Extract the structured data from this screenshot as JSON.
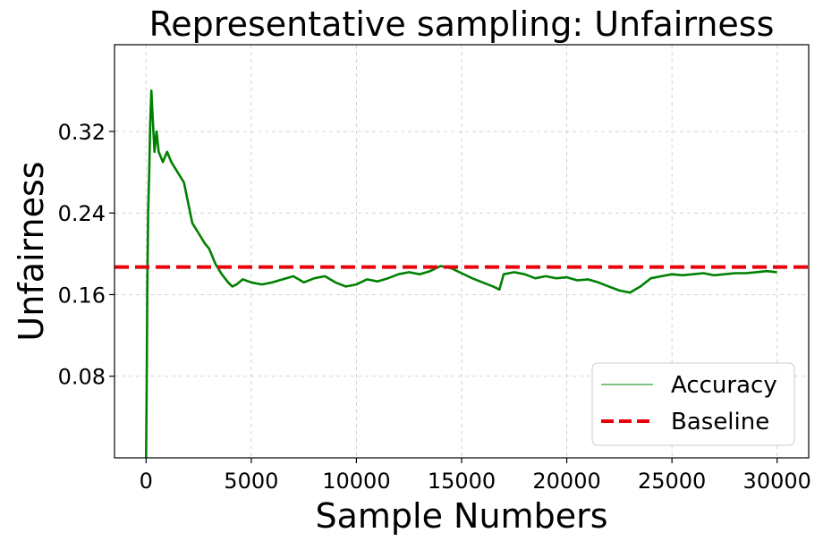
{
  "chart_data": {
    "type": "line",
    "title": "Representative sampling: Unfairness",
    "xlabel": "Sample Numbers",
    "ylabel": "Unfairness",
    "xlim": [
      -1500,
      31500
    ],
    "ylim": [
      0.0,
      0.405
    ],
    "xticks": [
      0,
      5000,
      10000,
      15000,
      20000,
      25000,
      30000
    ],
    "xtick_labels": [
      "0",
      "5000",
      "10000",
      "15000",
      "20000",
      "25000",
      "30000"
    ],
    "yticks": [
      0.08,
      0.16,
      0.24,
      0.32
    ],
    "ytick_labels": [
      "0.08",
      "0.16",
      "0.24",
      "0.32"
    ],
    "grid": true,
    "legend_position": "lower-right",
    "series": [
      {
        "name": "Accuracy",
        "color": "#008000",
        "style": "solid",
        "x": [
          0,
          30,
          60,
          100,
          150,
          200,
          250,
          300,
          400,
          500,
          600,
          800,
          1000,
          1200,
          1500,
          1800,
          2000,
          2200,
          2500,
          2800,
          3000,
          3300,
          3600,
          3900,
          4100,
          4300,
          4600,
          5000,
          5500,
          6000,
          6500,
          7000,
          7500,
          8000,
          8500,
          9000,
          9500,
          10000,
          10500,
          11000,
          11500,
          12000,
          12500,
          13000,
          13500,
          14000,
          14500,
          15000,
          15500,
          16000,
          16500,
          16800,
          17000,
          17500,
          18000,
          18500,
          19000,
          19500,
          20000,
          20500,
          21000,
          21500,
          22000,
          22500,
          23000,
          23500,
          24000,
          24500,
          25000,
          25500,
          26000,
          26500,
          27000,
          27500,
          28000,
          28500,
          29000,
          29500,
          30000
        ],
        "y": [
          0.0,
          0.07,
          0.17,
          0.24,
          0.28,
          0.33,
          0.36,
          0.34,
          0.3,
          0.32,
          0.3,
          0.29,
          0.3,
          0.29,
          0.28,
          0.27,
          0.25,
          0.23,
          0.22,
          0.21,
          0.205,
          0.19,
          0.18,
          0.172,
          0.168,
          0.17,
          0.175,
          0.172,
          0.17,
          0.172,
          0.175,
          0.178,
          0.172,
          0.176,
          0.178,
          0.172,
          0.168,
          0.17,
          0.175,
          0.173,
          0.176,
          0.18,
          0.182,
          0.18,
          0.183,
          0.188,
          0.186,
          0.181,
          0.176,
          0.172,
          0.168,
          0.165,
          0.18,
          0.182,
          0.18,
          0.176,
          0.178,
          0.176,
          0.177,
          0.174,
          0.175,
          0.172,
          0.168,
          0.164,
          0.162,
          0.168,
          0.176,
          0.178,
          0.18,
          0.179,
          0.18,
          0.181,
          0.179,
          0.18,
          0.181,
          0.181,
          0.182,
          0.183,
          0.182
        ]
      },
      {
        "name": "Baseline",
        "color": "#e8000b",
        "style": "dashed",
        "y_constant": 0.187
      }
    ]
  }
}
